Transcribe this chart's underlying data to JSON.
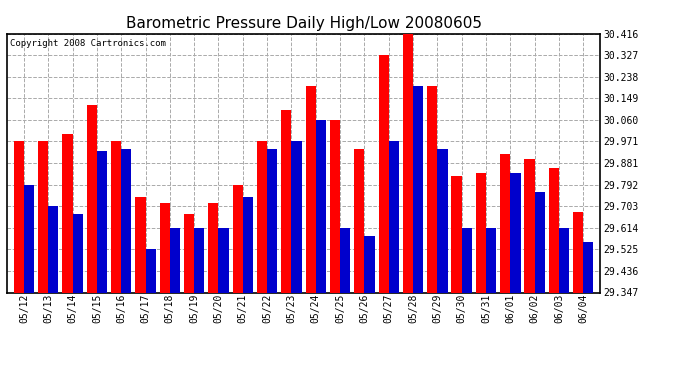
{
  "title": "Barometric Pressure Daily High/Low 20080605",
  "copyright": "Copyright 2008 Cartronics.com",
  "dates": [
    "05/12",
    "05/13",
    "05/14",
    "05/15",
    "05/16",
    "05/17",
    "05/18",
    "05/19",
    "05/20",
    "05/21",
    "05/22",
    "05/23",
    "05/24",
    "05/25",
    "05/26",
    "05/27",
    "05/28",
    "05/29",
    "05/30",
    "05/31",
    "06/01",
    "06/02",
    "06/03",
    "06/04"
  ],
  "highs": [
    29.971,
    29.971,
    30.0,
    30.12,
    29.971,
    29.74,
    29.718,
    29.67,
    29.718,
    29.792,
    29.971,
    30.1,
    30.2,
    30.06,
    29.94,
    30.327,
    30.416,
    30.2,
    29.83,
    29.84,
    29.92,
    29.9,
    29.86,
    29.68
  ],
  "lows": [
    29.792,
    29.703,
    29.67,
    29.93,
    29.94,
    29.525,
    29.614,
    29.614,
    29.614,
    29.74,
    29.94,
    29.971,
    30.06,
    29.614,
    29.58,
    29.971,
    30.2,
    29.94,
    29.614,
    29.614,
    29.84,
    29.762,
    29.614,
    29.555
  ],
  "high_color": "#ff0000",
  "low_color": "#0000cc",
  "background_color": "#ffffff",
  "plot_bg_color": "#ffffff",
  "grid_color": "#aaaaaa",
  "yticks": [
    29.347,
    29.436,
    29.525,
    29.614,
    29.703,
    29.792,
    29.881,
    29.971,
    30.06,
    30.149,
    30.238,
    30.327,
    30.416
  ],
  "ylim": [
    29.347,
    30.416
  ],
  "bar_width": 0.42,
  "title_fontsize": 11,
  "copyright_fontsize": 6.5,
  "tick_fontsize": 7,
  "ytick_fontsize": 7
}
